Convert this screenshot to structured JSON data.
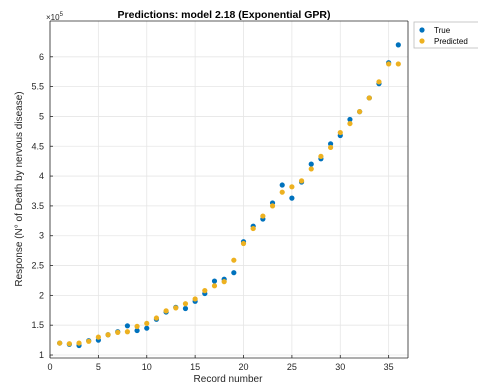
{
  "chart_data": {
    "type": "scatter",
    "title": "Predictions: model 2.18 (Exponential GPR)",
    "xlabel": "Record number",
    "ylabel": "Response (N° of Death by nervous disease)",
    "y_exponent_label": "×10",
    "y_exponent_power": "5",
    "xlim": [
      0,
      37
    ],
    "ylim": [
      0.95,
      6.6
    ],
    "x_ticks": [
      0,
      5,
      10,
      15,
      20,
      25,
      30,
      35
    ],
    "y_ticks": [
      1,
      1.5,
      2,
      2.5,
      3,
      3.5,
      4,
      4.5,
      5,
      5.5,
      6
    ],
    "y_tick_labels": [
      "1",
      "1.5",
      "2",
      "2.5",
      "3",
      "3.5",
      "4",
      "4.5",
      "5",
      "5.5",
      "6"
    ],
    "grid": true,
    "legend_position": "outside-top-right",
    "series": [
      {
        "name": "True",
        "color": "#0072BD",
        "x": [
          1,
          2,
          3,
          4,
          5,
          6,
          7,
          8,
          9,
          10,
          11,
          12,
          13,
          14,
          15,
          16,
          17,
          18,
          19,
          20,
          21,
          22,
          23,
          24,
          25,
          26,
          27,
          28,
          29,
          30,
          31,
          32,
          33,
          34,
          35,
          36
        ],
        "y": [
          1.2,
          1.18,
          1.16,
          1.24,
          1.25,
          1.34,
          1.39,
          1.49,
          1.41,
          1.45,
          1.6,
          1.72,
          1.8,
          1.78,
          1.9,
          2.03,
          2.24,
          2.27,
          2.38,
          2.9,
          3.16,
          3.28,
          3.55,
          3.85,
          3.63,
          3.9,
          4.2,
          4.29,
          4.54,
          4.68,
          4.95,
          5.08,
          5.31,
          5.55,
          5.9,
          6.2
        ]
      },
      {
        "name": "Predicted",
        "color": "#EDB120",
        "x": [
          1,
          2,
          3,
          4,
          5,
          6,
          7,
          8,
          9,
          10,
          11,
          12,
          13,
          14,
          15,
          16,
          17,
          18,
          19,
          20,
          21,
          22,
          23,
          24,
          25,
          26,
          27,
          28,
          29,
          30,
          31,
          32,
          33,
          34,
          35,
          36
        ],
        "y": [
          1.2,
          1.19,
          1.2,
          1.23,
          1.3,
          1.34,
          1.38,
          1.39,
          1.48,
          1.53,
          1.62,
          1.74,
          1.79,
          1.86,
          1.94,
          2.08,
          2.16,
          2.23,
          2.59,
          2.87,
          3.12,
          3.33,
          3.5,
          3.73,
          3.82,
          3.92,
          4.12,
          4.33,
          4.48,
          4.73,
          4.88,
          5.08,
          5.31,
          5.58,
          5.88,
          5.88
        ]
      }
    ]
  }
}
